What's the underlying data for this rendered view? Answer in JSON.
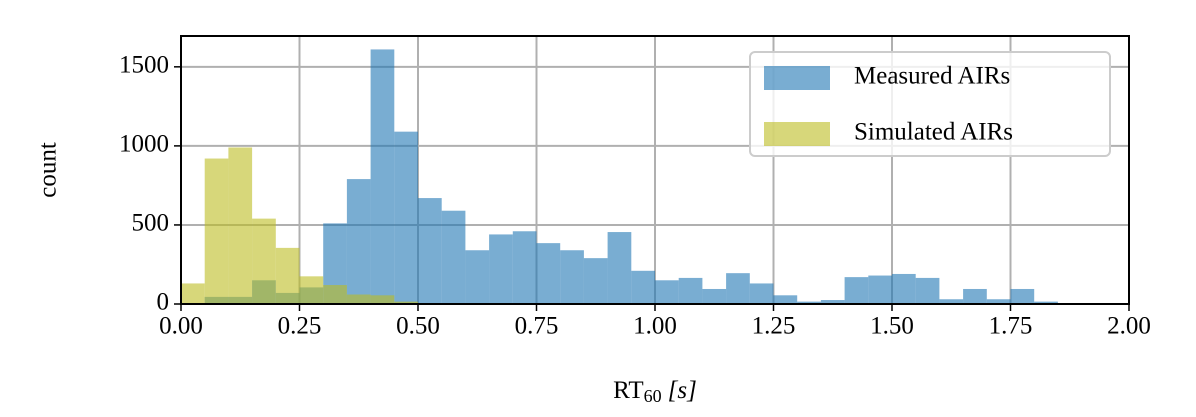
{
  "chart_data": {
    "type": "histogram",
    "y_label": "count",
    "x_label": {
      "base": "RT",
      "sub": "60",
      "unit": "[s]"
    },
    "bins": [
      0,
      0.05,
      0.1,
      0.15,
      0.2,
      0.25,
      0.3,
      0.35,
      0.4,
      0.45,
      0.5,
      0.55,
      0.6,
      0.65,
      0.7,
      0.75,
      0.8,
      0.85,
      0.9,
      0.95,
      1.0,
      1.05,
      1.1,
      1.15,
      1.2,
      1.25,
      1.3,
      1.35,
      1.4,
      1.45,
      1.5,
      1.55,
      1.6,
      1.65,
      1.7,
      1.75,
      1.8,
      1.85
    ],
    "series": [
      {
        "name": "Measured AIRs",
        "color": "#1f77b4",
        "values": [
          0,
          45,
          45,
          150,
          70,
          105,
          510,
          790,
          1610,
          1090,
          670,
          590,
          340,
          440,
          460,
          385,
          340,
          290,
          455,
          210,
          150,
          165,
          95,
          195,
          130,
          55,
          15,
          25,
          170,
          180,
          190,
          165,
          30,
          95,
          30,
          95,
          15
        ]
      },
      {
        "name": "Simulated AIRs",
        "color": "#bcbd22",
        "values": [
          130,
          920,
          990,
          540,
          355,
          175,
          120,
          60,
          55,
          15,
          5,
          0,
          0,
          0,
          0,
          0,
          0,
          0,
          0,
          0,
          0,
          0,
          0,
          0,
          0,
          0,
          0,
          0,
          0,
          0,
          0,
          0,
          0,
          0,
          0,
          0,
          0
        ]
      }
    ],
    "xlim": [
      0,
      2
    ],
    "ylim": [
      0,
      1695
    ],
    "xticks": [
      {
        "value": 0,
        "label": "0.00"
      },
      {
        "value": 0.25,
        "label": "0.25"
      },
      {
        "value": 0.5,
        "label": "0.50"
      },
      {
        "value": 0.75,
        "label": "0.75"
      },
      {
        "value": 1,
        "label": "1.00"
      },
      {
        "value": 1.25,
        "label": "1.25"
      },
      {
        "value": 1.5,
        "label": "1.50"
      },
      {
        "value": 1.75,
        "label": "1.75"
      },
      {
        "value": 2,
        "label": "2.00"
      }
    ],
    "yticks": [
      0,
      500,
      1000,
      1500
    ],
    "grid": true,
    "legend": "upper right",
    "opacity": 0.6
  }
}
